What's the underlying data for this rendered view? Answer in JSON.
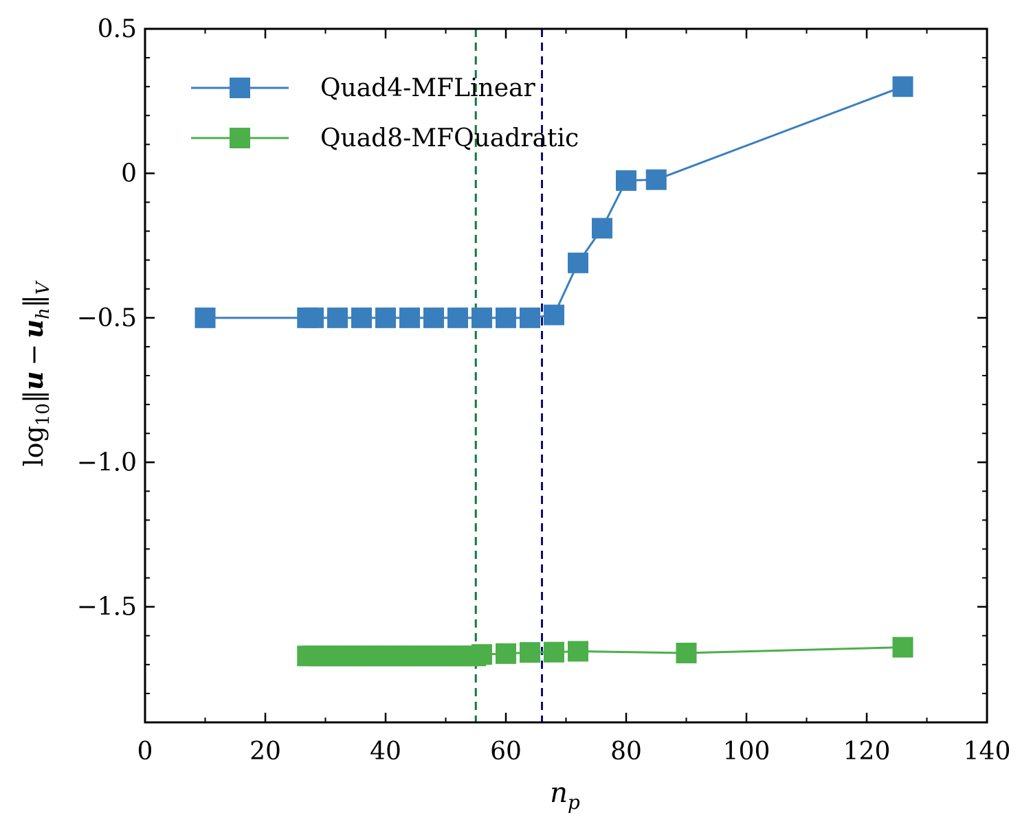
{
  "chart_data": {
    "type": "line",
    "xlabel": {
      "base": "n",
      "sub": "p"
    },
    "ylabel": {
      "prefix": "log",
      "prefix_sub": "10",
      "norm_open": "‖",
      "u": "u",
      "minus": "−",
      "uh": "u",
      "uh_sub": "h",
      "norm_close": "‖",
      "norm_sub": "V"
    },
    "xlim": [
      0,
      140
    ],
    "ylim": [
      -1.9,
      0.5
    ],
    "x_ticks": [
      0,
      20,
      40,
      60,
      80,
      100,
      120,
      140
    ],
    "x_tick_labels": [
      "0",
      "20",
      "40",
      "60",
      "80",
      "100",
      "120",
      "140"
    ],
    "y_ticks": [
      0.5,
      0,
      -0.5,
      -1.0,
      -1.5
    ],
    "y_tick_labels": [
      "0.5",
      "0",
      "−0.5",
      "−1.0",
      "−1.5"
    ],
    "grid": false,
    "legend_position": "top-left",
    "vertical_lines": [
      {
        "x": 55,
        "color": "#117a3a",
        "style": "dashed"
      },
      {
        "x": 66,
        "color": "#0b0b80",
        "style": "dashed"
      }
    ],
    "series": [
      {
        "name": "Quad4-MFLinear",
        "color": "#3a7fbd",
        "marker": "square",
        "x": [
          10,
          27,
          28,
          32,
          36,
          40,
          44,
          48,
          52,
          56,
          60,
          64,
          68,
          72,
          76,
          80,
          85,
          126
        ],
        "y": [
          -0.5,
          -0.5,
          -0.5,
          -0.5,
          -0.5,
          -0.5,
          -0.5,
          -0.5,
          -0.5,
          -0.5,
          -0.5,
          -0.5,
          -0.49,
          -0.31,
          -0.19,
          -0.025,
          -0.022,
          0.3
        ]
      },
      {
        "name": "Quad8-MFQuadratic",
        "color": "#4caf4a",
        "marker": "square",
        "x": [
          27,
          28,
          29,
          30,
          31,
          32,
          33,
          34,
          35,
          36,
          37,
          38,
          39,
          40,
          41,
          42,
          43,
          44,
          45,
          46,
          47,
          48,
          49,
          50,
          51,
          52,
          53,
          54,
          55,
          56,
          60,
          64,
          68,
          72,
          90,
          126
        ],
        "y": [
          -1.67,
          -1.67,
          -1.67,
          -1.67,
          -1.67,
          -1.67,
          -1.67,
          -1.67,
          -1.67,
          -1.67,
          -1.67,
          -1.67,
          -1.67,
          -1.67,
          -1.67,
          -1.67,
          -1.67,
          -1.67,
          -1.67,
          -1.67,
          -1.67,
          -1.67,
          -1.67,
          -1.67,
          -1.67,
          -1.67,
          -1.67,
          -1.67,
          -1.67,
          -1.665,
          -1.662,
          -1.658,
          -1.657,
          -1.654,
          -1.66,
          -1.64
        ]
      }
    ]
  }
}
